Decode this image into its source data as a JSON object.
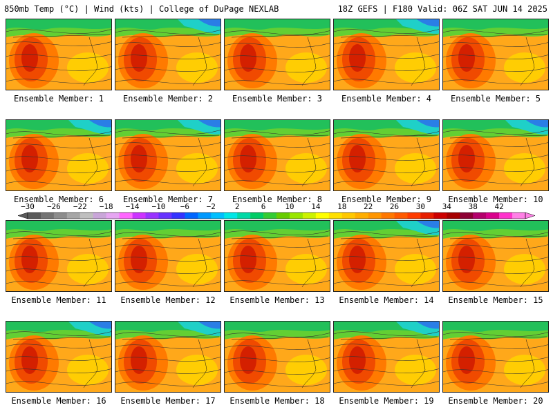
{
  "header": {
    "left": "850mb Temp (°C) | Wind (kts) | College of DuPage NEXLAB",
    "right": "18Z GEFS | F180 Valid: 06Z SAT JUN 14 2025"
  },
  "panels": [
    {
      "label": "Ensemble Member: 1",
      "blue_ne": false
    },
    {
      "label": "Ensemble Member: 2",
      "blue_ne": true
    },
    {
      "label": "Ensemble Member: 3",
      "blue_ne": false
    },
    {
      "label": "Ensemble Member: 4",
      "blue_ne": true
    },
    {
      "label": "Ensemble Member: 5",
      "blue_ne": false
    },
    {
      "label": "Ensemble Member: 6",
      "blue_ne": true
    },
    {
      "label": "Ensemble Member: 7",
      "blue_ne": true
    },
    {
      "label": "Ensemble Member: 8",
      "blue_ne": false
    },
    {
      "label": "Ensemble Member: 9",
      "blue_ne": true
    },
    {
      "label": "Ensemble Member: 10",
      "blue_ne": true
    },
    {
      "label": "Ensemble Member: 11",
      "blue_ne": false
    },
    {
      "label": "Ensemble Member: 12",
      "blue_ne": false
    },
    {
      "label": "Ensemble Member: 13",
      "blue_ne": false
    },
    {
      "label": "Ensemble Member: 14",
      "blue_ne": true
    },
    {
      "label": "Ensemble Member: 15",
      "blue_ne": false
    },
    {
      "label": "Ensemble Member: 16",
      "blue_ne": true
    },
    {
      "label": "Ensemble Member: 17",
      "blue_ne": true
    },
    {
      "label": "Ensemble Member: 18",
      "blue_ne": false
    },
    {
      "label": "Ensemble Member: 19",
      "blue_ne": true
    },
    {
      "label": "Ensemble Member: 20",
      "blue_ne": false
    }
  ],
  "colorbar": {
    "tick_labels": [
      "−30",
      "−26",
      "−22",
      "−18",
      "−14",
      "−10",
      "−6",
      "−2",
      "2",
      "6",
      "10",
      "14",
      "18",
      "22",
      "26",
      "30",
      "34",
      "38",
      "42"
    ],
    "colors": [
      "#5a5a5a",
      "#737373",
      "#8c8c8c",
      "#a6a6a6",
      "#bfbfbf",
      "#c9a6d9",
      "#e6a6f2",
      "#ff66ff",
      "#cc33ff",
      "#9933ff",
      "#6633ff",
      "#3333ff",
      "#0066ff",
      "#0099ff",
      "#00bfff",
      "#00e6e6",
      "#00d9a6",
      "#00cc66",
      "#33cc33",
      "#66cc00",
      "#99e600",
      "#ccf200",
      "#ffff00",
      "#ffe000",
      "#ffc800",
      "#ffae00",
      "#ff9600",
      "#ff7800",
      "#ff5a00",
      "#ff3c00",
      "#e61e00",
      "#cc0000",
      "#a60000",
      "#8c0033",
      "#b3006b",
      "#d9008c",
      "#ff33cc",
      "#ff80e6"
    ]
  },
  "map_colors": {
    "base": "#ffa81a",
    "warm": "#ff7a00",
    "hot": "#f04a00",
    "hottest": "#d42000",
    "cool_green": "#63cf33",
    "cooler_green": "#22c05a",
    "cyan": "#1fd0c8",
    "blue": "#2a7ee6",
    "yellow": "#ffd400"
  }
}
